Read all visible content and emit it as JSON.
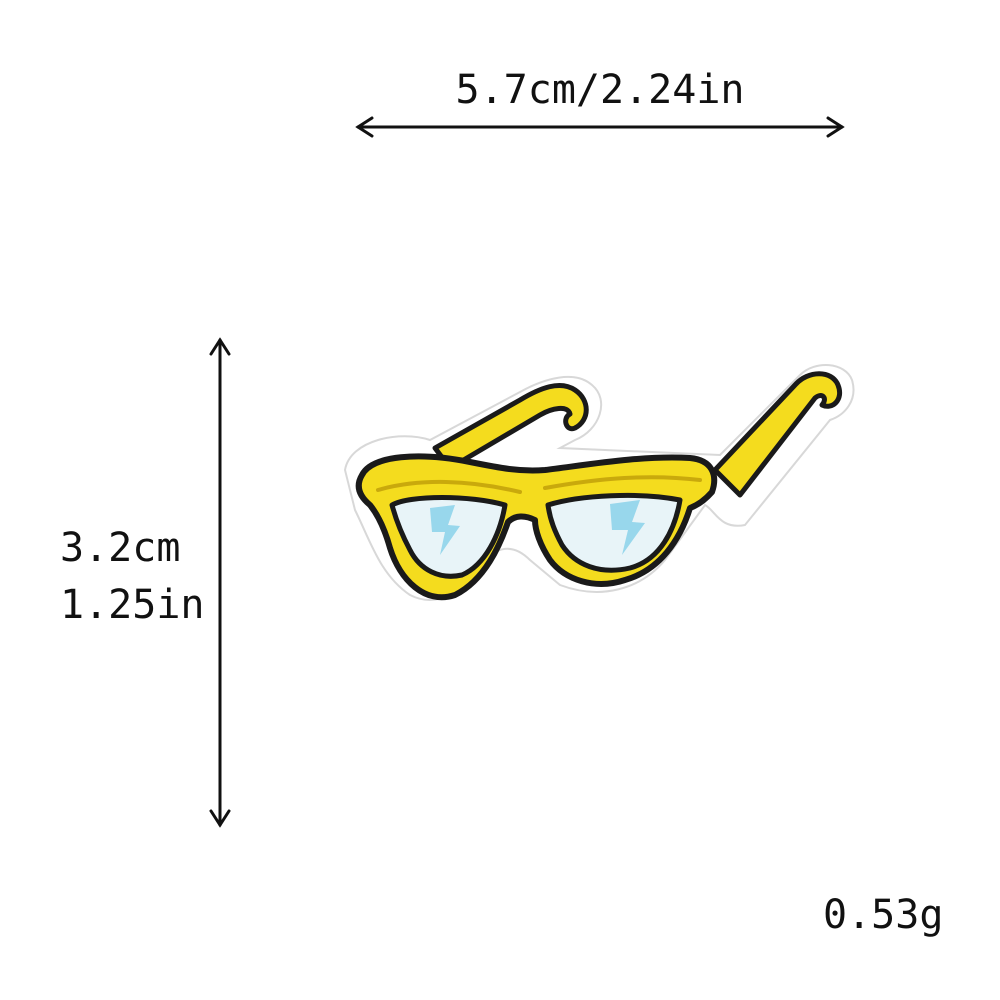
{
  "dimensions": {
    "width_text": "5.7cm/2.24in",
    "height_cm_text": "3.2cm",
    "height_in_text": "1.25in",
    "weight_text": "0.53g"
  },
  "product": {
    "depiction": "yellow sunglasses embroidered patch",
    "colors": {
      "frame": "#f4dc1e",
      "frame_shadow": "#c9a90c",
      "lens": "#e8f4f8",
      "lens_highlight": "#8fd4ea",
      "outline": "#1a1a1a",
      "backing": "#ffffff"
    }
  },
  "icons": [
    "width-arrow-icon",
    "height-arrow-icon"
  ]
}
